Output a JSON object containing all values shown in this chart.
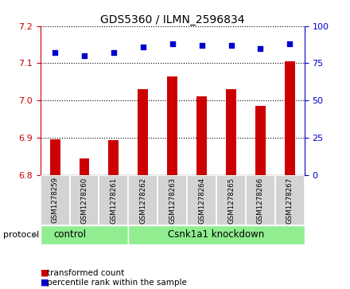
{
  "title": "GDS5360 / ILMN_2596834",
  "samples": [
    "GSM1278259",
    "GSM1278260",
    "GSM1278261",
    "GSM1278262",
    "GSM1278263",
    "GSM1278264",
    "GSM1278265",
    "GSM1278266",
    "GSM1278267"
  ],
  "bar_values": [
    6.895,
    6.845,
    6.893,
    7.03,
    7.065,
    7.01,
    7.03,
    6.985,
    7.105
  ],
  "dot_values": [
    82,
    80,
    82,
    86,
    88,
    87,
    87,
    85,
    88
  ],
  "ylim_left": [
    6.8,
    7.2
  ],
  "ylim_right": [
    0,
    100
  ],
  "yticks_left": [
    6.8,
    6.9,
    7.0,
    7.1,
    7.2
  ],
  "yticks_right": [
    0,
    25,
    50,
    75,
    100
  ],
  "bar_color": "#cc0000",
  "dot_color": "#0000cc",
  "tick_area_color": "#d3d3d3",
  "protocol_color": "#90ee90",
  "control_samples": 3,
  "knockdown_samples": 6,
  "control_label": "control",
  "knockdown_label": "Csnk1a1 knockdown",
  "protocol_label": "protocol",
  "legend_bar_label": "transformed count",
  "legend_dot_label": "percentile rank within the sample"
}
